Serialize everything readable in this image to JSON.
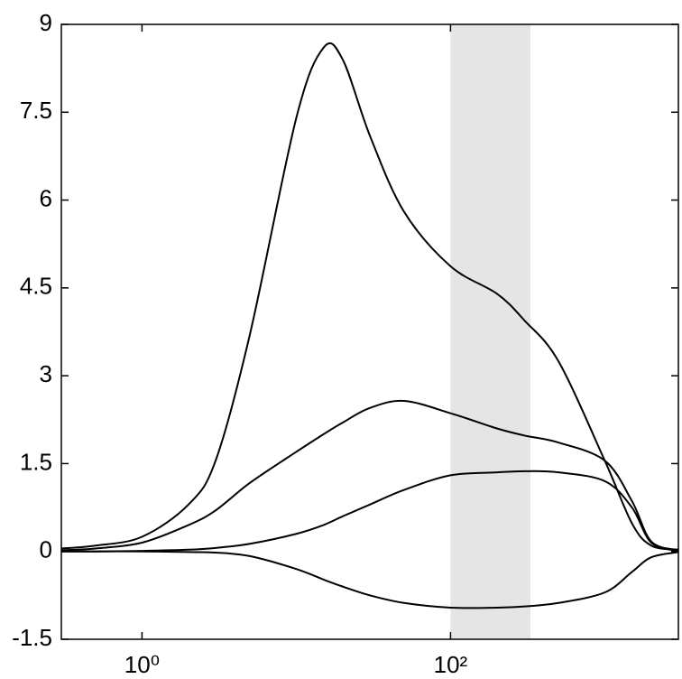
{
  "chart_data": {
    "type": "line",
    "x": [
      0.3,
      0.5,
      1,
      2,
      3,
      5,
      10,
      15,
      20,
      30,
      50,
      100,
      200,
      300,
      500,
      1000,
      1500,
      2000,
      3000
    ],
    "series": [
      {
        "color": "#000000",
        "values": [
          0.05,
          0.1,
          0.25,
          0.8,
          1.55,
          3.7,
          7.4,
          8.6,
          8.4,
          7.1,
          5.8,
          4.87,
          4.4,
          3.95,
          3.25,
          1.55,
          0.48,
          0.1,
          0.03
        ]
      },
      {
        "color": "#000000",
        "values": [
          0.02,
          0.05,
          0.15,
          0.45,
          0.7,
          1.17,
          1.7,
          2.0,
          2.2,
          2.45,
          2.57,
          2.36,
          2.1,
          1.98,
          1.86,
          1.55,
          0.86,
          0.17,
          0.02
        ]
      },
      {
        "color": "#000000",
        "values": [
          0,
          0,
          0.01,
          0.03,
          0.06,
          0.13,
          0.3,
          0.45,
          0.6,
          0.8,
          1.05,
          1.3,
          1.35,
          1.37,
          1.35,
          1.2,
          0.75,
          0.15,
          0.01
        ]
      },
      {
        "color": "#000000",
        "values": [
          0,
          0,
          0,
          -0.01,
          -0.02,
          -0.08,
          -0.3,
          -0.48,
          -0.6,
          -0.75,
          -0.88,
          -0.96,
          -0.96,
          -0.94,
          -0.88,
          -0.7,
          -0.35,
          -0.1,
          -0.01
        ]
      }
    ],
    "xscale": "log",
    "xlim": [
      0.3,
      3000
    ],
    "xticks": [
      {
        "value": 1,
        "label": "10⁰"
      },
      {
        "value": 100,
        "label": "10²"
      }
    ],
    "ylim": [
      -1.5,
      9
    ],
    "yticks": [
      -1.5,
      0,
      1.5,
      3,
      4.5,
      6,
      7.5,
      9
    ],
    "shaded_region": [
      100,
      330
    ],
    "shaded_color": "#e5e5e5"
  }
}
